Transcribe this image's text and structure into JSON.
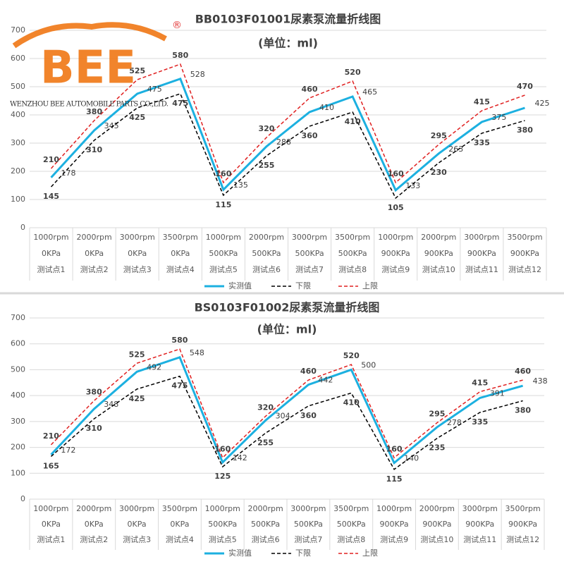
{
  "logo": {
    "brand": "BEE",
    "mark": "®",
    "company": "WENZHOU BEE AUTOMOBILE PARTS CO.,LTD."
  },
  "chart_data": [
    {
      "type": "line",
      "title": "BB0103F01001尿素泵流量折线图",
      "subtitle": "(单位：ml)",
      "categories": [
        [
          "1000rpm",
          "0KPa",
          "测试点1"
        ],
        [
          "2000rpm",
          "0KPa",
          "测试点2"
        ],
        [
          "3000rpm",
          "0KPa",
          "测试点3"
        ],
        [
          "3500rpm",
          "0KPa",
          "测试点4"
        ],
        [
          "1000rpm",
          "500KPa",
          "测试点5"
        ],
        [
          "2000rpm",
          "500KPa",
          "测试点6"
        ],
        [
          "3000rpm",
          "500KPa",
          "测试点7"
        ],
        [
          "3500rpm",
          "500KPa",
          "测试点8"
        ],
        [
          "1000rpm",
          "900KPa",
          "测试点9"
        ],
        [
          "2000rpm",
          "900KPa",
          "测试点10"
        ],
        [
          "3000rpm",
          "900KPa",
          "测试点11"
        ],
        [
          "3500rpm",
          "900KPa",
          "测试点12"
        ]
      ],
      "series": [
        {
          "name": "实测值",
          "color": "#1cb0e0",
          "style": "solid",
          "values": [
            178,
            345,
            475,
            528,
            135,
            288,
            410,
            465,
            133,
            263,
            375,
            425
          ]
        },
        {
          "name": "下限",
          "color": "#000000",
          "style": "dashed",
          "values": [
            145,
            310,
            425,
            475,
            115,
            255,
            360,
            410,
            105,
            230,
            335,
            380
          ]
        },
        {
          "name": "上限",
          "color": "#e02020",
          "style": "dashed",
          "values": [
            210,
            380,
            525,
            580,
            160,
            320,
            460,
            520,
            160,
            295,
            415,
            470
          ]
        }
      ],
      "ylim": [
        0,
        700
      ],
      "yticks": [
        0,
        100,
        200,
        300,
        400,
        500,
        600,
        700
      ],
      "grid": true,
      "legend": "bottom"
    },
    {
      "type": "line",
      "title": "BS0103F01002尿素泵流量折线图",
      "subtitle": "(单位：ml)",
      "categories": [
        [
          "1000rpm",
          "0KPa",
          "测试点1"
        ],
        [
          "2000rpm",
          "0KPa",
          "测试点2"
        ],
        [
          "3000rpm",
          "0KPa",
          "测试点3"
        ],
        [
          "3500rpm",
          "0KPa",
          "测试点4"
        ],
        [
          "1000rpm",
          "500KPa",
          "测试点5"
        ],
        [
          "2000rpm",
          "500KPa",
          "测试点6"
        ],
        [
          "3000rpm",
          "500KPa",
          "测试点7"
        ],
        [
          "3500rpm",
          "500KPa",
          "测试点8"
        ],
        [
          "1000rpm",
          "900KPa",
          "测试点9"
        ],
        [
          "2000rpm",
          "900KPa",
          "测试点10"
        ],
        [
          "3000rpm",
          "900KPa",
          "测试点11"
        ],
        [
          "3500rpm",
          "900KPa",
          "测试点12"
        ]
      ],
      "series": [
        {
          "name": "实测值",
          "color": "#1cb0e0",
          "style": "solid",
          "values": [
            172,
            348,
            492,
            548,
            142,
            304,
            442,
            500,
            140,
            278,
            391,
            438
          ]
        },
        {
          "name": "下限",
          "color": "#000000",
          "style": "dashed",
          "values": [
            165,
            310,
            425,
            475,
            125,
            255,
            360,
            410,
            115,
            235,
            335,
            380
          ]
        },
        {
          "name": "上限",
          "color": "#e02020",
          "style": "dashed",
          "values": [
            210,
            380,
            525,
            580,
            160,
            320,
            460,
            520,
            160,
            295,
            415,
            460
          ]
        }
      ],
      "ylim": [
        0,
        700
      ],
      "yticks": [
        0,
        100,
        200,
        300,
        400,
        500,
        600,
        700
      ],
      "grid": true,
      "legend": "bottom"
    }
  ]
}
